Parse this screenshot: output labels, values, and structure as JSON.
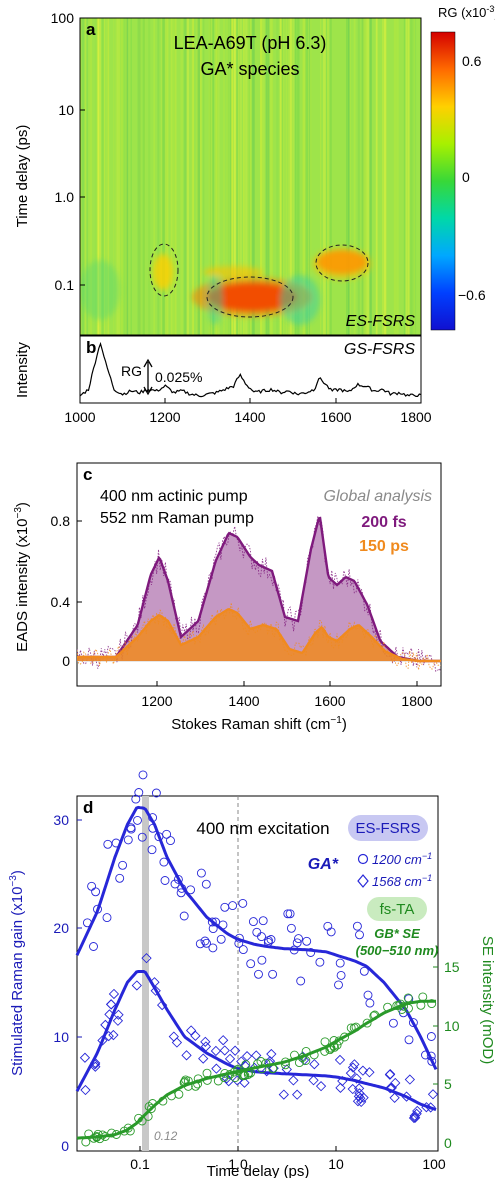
{
  "panels": {
    "a": {
      "letter": "a",
      "title_line1": "LEA-A69T (pH 6.3)",
      "title_line2": "GA* species",
      "ylabel": "Time delay (ps)",
      "yticks": [
        "100",
        "10",
        "1.0",
        "0.1"
      ],
      "corner_label": "ES-FSRS",
      "colorbar": {
        "label": "RG (x10",
        "label_exp": "-3",
        "label_close": ")",
        "ticks": [
          "0.6",
          "0",
          "−0.6"
        ],
        "colors": [
          "#d40000",
          "#ff6a00",
          "#ffd000",
          "#a8f000",
          "#38d838",
          "#00d8a8",
          "#00a8ff",
          "#0040ff",
          "#1010d0"
        ]
      }
    },
    "b": {
      "letter": "b",
      "ylabel": "Intensity",
      "corner_label": "GS-FSRS",
      "scale_bar": "0.025%",
      "scale_prefix": "RG",
      "xticks": [
        "1000",
        "1200",
        "1400",
        "1600",
        "1800"
      ]
    },
    "c": {
      "letter": "c",
      "text_line1": "400 nm actinic pump",
      "text_line2": "552 nm Raman pump",
      "legend_title": "Global analysis",
      "ylabel": "EADS intensity (x10",
      "ylabel_exp": "−3",
      "ylabel_close": ")",
      "xlabel": "Stokes Raman shift (cm",
      "xlabel_exp": "−1",
      "xlabel_close": ")",
      "yticks": [
        "0.8",
        "0.4",
        "0"
      ],
      "xticks": [
        "1200",
        "1400",
        "1600",
        "1800"
      ]
    },
    "d": {
      "letter": "d",
      "title": "400 nm excitation",
      "pill1": "ES-FSRS",
      "pill1_sub": "GA*",
      "pill1_s1": "1200 cm",
      "pill1_s2": "1568 cm",
      "pill1_exp": "−1",
      "pill2": "fs-TA",
      "pill2_sub1": "GB* SE",
      "pill2_sub2": "(500−510 nm)",
      "marker": "0.12",
      "ylabel_left": "Stimulated Raman gain (x10",
      "ylabel_left_exp": "−3",
      "ylabel_left_close": ")",
      "ylabel_right": "SE intensity (mOD)",
      "xlabel": "Time delay (ps)",
      "yticks_left": [
        "30",
        "20",
        "10",
        "0"
      ],
      "yticks_right": [
        "15",
        "10",
        "5",
        "0"
      ],
      "xticks": [
        "0.1",
        "1.0",
        "10",
        "100"
      ]
    }
  },
  "chart_data": [
    {
      "type": "heatmap",
      "x_axis": "Raman shift (cm⁻¹)",
      "xlim": [
        1000,
        1800
      ],
      "y_scale": "log",
      "ylim": [
        0.04,
        100
      ],
      "zlim": [
        -0.6,
        0.6
      ],
      "features": [
        {
          "x": 1370,
          "y": 0.085,
          "z": 0.65
        },
        {
          "x": 1580,
          "y": 0.17,
          "z": 0.5
        },
        {
          "x": 1200,
          "y": 0.13,
          "z": 0.35
        }
      ]
    },
    {
      "type": "line",
      "x": [
        1000,
        1020,
        1040,
        1048,
        1060,
        1080,
        1100,
        1120,
        1140,
        1160,
        1180,
        1200,
        1220,
        1240,
        1260,
        1280,
        1300,
        1320,
        1340,
        1360,
        1375,
        1390,
        1410,
        1430,
        1450,
        1470,
        1490,
        1510,
        1530,
        1550,
        1560,
        1570,
        1590,
        1610,
        1630,
        1650,
        1670,
        1690,
        1710,
        1730,
        1750,
        1770,
        1790,
        1800
      ],
      "y": [
        0.004,
        0.012,
        0.055,
        0.07,
        0.045,
        0.012,
        0.006,
        0.01,
        0.008,
        0.012,
        0.01,
        0.016,
        0.008,
        0.01,
        0.006,
        0.004,
        0.006,
        0.008,
        0.012,
        0.016,
        0.03,
        0.018,
        0.008,
        0.01,
        0.012,
        0.008,
        0.01,
        0.006,
        0.008,
        0.012,
        0.026,
        0.022,
        0.01,
        0.012,
        0.008,
        0.018,
        0.016,
        0.01,
        0.012,
        0.006,
        0.008,
        0.004,
        0.005,
        0.004
      ]
    },
    {
      "type": "area",
      "xlim": [
        1010,
        1850
      ],
      "ylim": [
        -0.05,
        1.0
      ],
      "series": [
        {
          "name": "200 fs",
          "color": "#7f1a7d",
          "x": [
            1100,
            1150,
            1180,
            1200,
            1220,
            1250,
            1290,
            1330,
            1360,
            1380,
            1410,
            1430,
            1460,
            1490,
            1520,
            1550,
            1570,
            1590,
            1610,
            1630,
            1650,
            1680,
            1710,
            1750,
            1800
          ],
          "values": [
            0.02,
            0.18,
            0.43,
            0.52,
            0.4,
            0.12,
            0.2,
            0.5,
            0.64,
            0.62,
            0.52,
            0.48,
            0.45,
            0.22,
            0.2,
            0.56,
            0.73,
            0.42,
            0.38,
            0.42,
            0.4,
            0.28,
            0.1,
            0.02,
            0.0
          ]
        },
        {
          "name": "150 ps",
          "color": "#f08a1e",
          "x": [
            1100,
            1150,
            1180,
            1200,
            1220,
            1250,
            1290,
            1330,
            1360,
            1380,
            1410,
            1440,
            1470,
            1500,
            1530,
            1560,
            1575,
            1590,
            1610,
            1640,
            1660,
            1690,
            1720,
            1760,
            1800
          ],
          "values": [
            0.02,
            0.12,
            0.2,
            0.23,
            0.2,
            0.08,
            0.12,
            0.22,
            0.26,
            0.24,
            0.16,
            0.18,
            0.16,
            0.06,
            0.04,
            0.14,
            0.17,
            0.12,
            0.1,
            0.16,
            0.18,
            0.12,
            0.05,
            0.01,
            0.0
          ]
        }
      ]
    },
    {
      "type": "line",
      "x_scale": "log",
      "xlim": [
        0.025,
        100
      ],
      "ylim_left": [
        0,
        33
      ],
      "ylim_right": [
        0,
        18.5
      ],
      "series": [
        {
          "name": "1200 cm⁻¹",
          "marker": "circle",
          "color": "#2727d8",
          "fit_x": [
            0.025,
            0.04,
            0.06,
            0.08,
            0.1,
            0.12,
            0.15,
            0.2,
            0.3,
            0.5,
            0.8,
            1.0,
            1.5,
            2,
            3,
            5,
            8,
            10,
            15,
            20,
            30,
            50,
            70,
            100
          ],
          "fit": [
            18,
            22,
            27,
            30,
            31.6,
            31.5,
            30,
            27,
            24,
            21.5,
            20,
            19.5,
            19,
            18.8,
            18.6,
            18.5,
            18.3,
            18,
            17.5,
            17,
            15.5,
            13,
            10.5,
            7.5
          ]
        },
        {
          "name": "1568 cm⁻¹",
          "marker": "diamond",
          "color": "#2727d8",
          "fit_x": [
            0.025,
            0.04,
            0.06,
            0.08,
            0.1,
            0.12,
            0.15,
            0.2,
            0.3,
            0.5,
            0.8,
            1.0,
            1.5,
            2,
            3,
            5,
            8,
            10,
            15,
            20,
            30,
            50,
            70,
            100
          ],
          "fit": [
            5.5,
            9,
            13,
            15.5,
            16.5,
            16.5,
            15,
            13,
            10.5,
            9,
            8,
            7.6,
            7.3,
            7.2,
            7.1,
            7,
            6.9,
            6.8,
            6.5,
            6.2,
            5.8,
            5,
            4.3,
            3.8
          ]
        },
        {
          "name": "GB* SE",
          "marker": "circle",
          "color": "#2a9a2a",
          "axis": "right",
          "fit_x": [
            0.025,
            0.04,
            0.06,
            0.08,
            0.1,
            0.12,
            0.15,
            0.2,
            0.3,
            0.5,
            0.8,
            1.0,
            1.5,
            2,
            3,
            5,
            8,
            10,
            15,
            20,
            30,
            50,
            70,
            100
          ],
          "fit": [
            0.5,
            0.6,
            0.8,
            1.2,
            1.8,
            2.5,
            3.3,
            4.2,
            5,
            5.6,
            6,
            6.2,
            6.5,
            6.7,
            7,
            7.6,
            8.3,
            8.8,
            9.6,
            10.3,
            11.2,
            12,
            12.2,
            12.2
          ]
        }
      ],
      "annotations": {
        "gray_band_at": 0.12,
        "dashed_line_at": 1.0
      }
    }
  ]
}
